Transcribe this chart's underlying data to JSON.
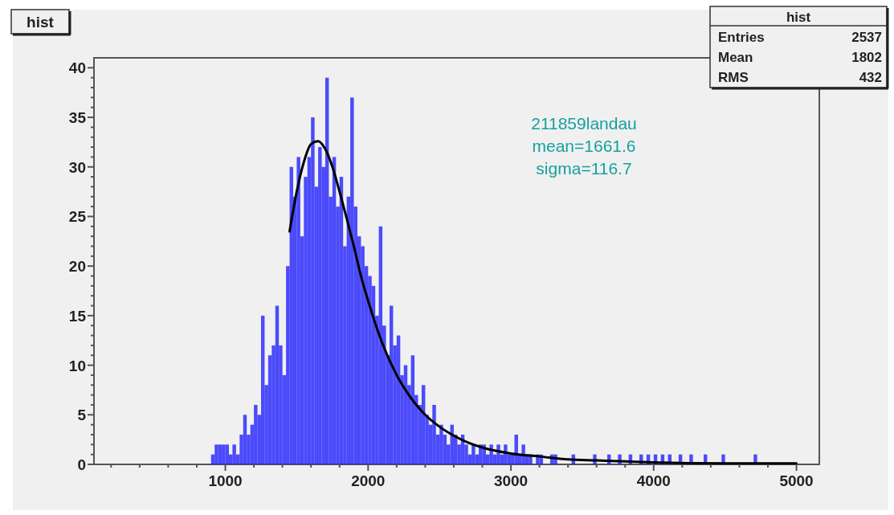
{
  "chart_data": {
    "type": "histogram",
    "title": "hist",
    "annotations": [
      "211859landau",
      "mean=1661.6",
      "sigma=116.7",
      "hist",
      "Entries",
      "2537",
      "Mean",
      "1802",
      "RMS",
      "432"
    ],
    "xlim": [
      80,
      5160
    ],
    "ylim": [
      0,
      41
    ],
    "xticks": [
      {
        "value": 200,
        "label": null
      },
      {
        "value": 400,
        "label": null
      },
      {
        "value": 600,
        "label": null
      },
      {
        "value": 800,
        "label": null
      },
      1000,
      {
        "value": 1200,
        "label": null
      },
      {
        "value": 1400,
        "label": null
      },
      {
        "value": 1600,
        "label": null
      },
      {
        "value": 1800,
        "label": null
      },
      2000,
      {
        "value": 2200,
        "label": null
      },
      {
        "value": 2400,
        "label": null
      },
      {
        "value": 2600,
        "label": null
      },
      {
        "value": 2800,
        "label": null
      },
      3000,
      {
        "value": 3200,
        "label": null
      },
      {
        "value": 3400,
        "label": null
      },
      {
        "value": 3600,
        "label": null
      },
      {
        "value": 3800,
        "label": null
      },
      4000,
      {
        "value": 4200,
        "label": null
      },
      {
        "value": 4400,
        "label": null
      },
      {
        "value": 4600,
        "label": null
      },
      {
        "value": 4800,
        "label": null
      },
      5000
    ],
    "yticks": [
      0,
      {
        "value": 1,
        "label": null
      },
      {
        "value": 2,
        "label": null
      },
      {
        "value": 3,
        "label": null
      },
      {
        "value": 4,
        "label": null
      },
      5,
      {
        "value": 6,
        "label": null
      },
      {
        "value": 7,
        "label": null
      },
      {
        "value": 8,
        "label": null
      },
      {
        "value": 9,
        "label": null
      },
      10,
      {
        "value": 11,
        "label": null
      },
      {
        "value": 12,
        "label": null
      },
      {
        "value": 13,
        "label": null
      },
      {
        "value": 14,
        "label": null
      },
      15,
      {
        "value": 16,
        "label": null
      },
      {
        "value": 17,
        "label": null
      },
      {
        "value": 18,
        "label": null
      },
      {
        "value": 19,
        "label": null
      },
      20,
      {
        "value": 21,
        "label": null
      },
      {
        "value": 22,
        "label": null
      },
      {
        "value": 23,
        "label": null
      },
      {
        "value": 24,
        "label": null
      },
      25,
      {
        "value": 26,
        "label": null
      },
      {
        "value": 27,
        "label": null
      },
      {
        "value": 28,
        "label": null
      },
      {
        "value": 29,
        "label": null
      },
      30,
      {
        "value": 31,
        "label": null
      },
      {
        "value": 32,
        "label": null
      },
      {
        "value": 33,
        "label": null
      },
      {
        "value": 34,
        "label": null
      },
      35,
      {
        "value": 36,
        "label": null
      },
      {
        "value": 37,
        "label": null
      },
      {
        "value": 38,
        "label": null
      },
      {
        "value": 39,
        "label": null
      },
      40
    ],
    "series": [
      {
        "color": "#1414ff",
        "bins": [
          900,
          925,
          950,
          975,
          1000,
          1025,
          1050,
          1075,
          1100,
          1125,
          1150,
          1175,
          1200,
          1225,
          1250,
          1275,
          1300,
          1325,
          1350,
          1375,
          1400,
          1425,
          1450,
          1475,
          1500,
          1525,
          1550,
          1575,
          1600,
          1625,
          1650,
          1675,
          1700,
          1725,
          1750,
          1775,
          1800,
          1825,
          1850,
          1875,
          1900,
          1925,
          1950,
          1975,
          2000,
          2025,
          2050,
          2075,
          2100,
          2125,
          2150,
          2175,
          2200,
          2225,
          2250,
          2275,
          2300,
          2325,
          2350,
          2375,
          2400,
          2425,
          2450,
          2475,
          2500,
          2525,
          2550,
          2575,
          2600,
          2625,
          2650,
          2675,
          2700,
          2725,
          2750,
          2775,
          2800,
          2825,
          2850,
          2875,
          2900,
          2925,
          2950,
          2975,
          3000,
          3025,
          3050,
          3075,
          3100,
          3125,
          3150,
          3175,
          3200,
          3225,
          3250,
          3275,
          3300,
          3325,
          3350,
          3375,
          3400,
          3425,
          3450,
          3475,
          3500,
          3525,
          3550,
          3575,
          3600,
          3625,
          3650,
          3675,
          3700,
          3725,
          3750,
          3775,
          3800,
          3825,
          3850,
          3875,
          3900,
          3925,
          3950,
          3975,
          4000,
          4025,
          4050,
          4075,
          4100,
          4125,
          4150,
          4175,
          4200,
          4225,
          4250,
          4275,
          4300,
          4325,
          4350,
          4375,
          4400,
          4425,
          4450,
          4475,
          4500,
          4525,
          4550,
          4575,
          4600,
          4625,
          4650,
          4675,
          4700,
          4725,
          4750
        ],
        "values": [
          1,
          2,
          2,
          2,
          2,
          1,
          2,
          1,
          3,
          5,
          3,
          4,
          6,
          5,
          15,
          8,
          11,
          12,
          16,
          12,
          9,
          20,
          30,
          27,
          31,
          23,
          29,
          31,
          35,
          28,
          32,
          30,
          39,
          27,
          31,
          26,
          29,
          22,
          27,
          37,
          26,
          23,
          22,
          20,
          19,
          18,
          15,
          24,
          14,
          11,
          16,
          12,
          13,
          9,
          10,
          8,
          11,
          7,
          6,
          8,
          5,
          4,
          6,
          3,
          4,
          3,
          2,
          4,
          3,
          2,
          3,
          2,
          1,
          2,
          1,
          2,
          2,
          1,
          2,
          1,
          2,
          1,
          2,
          1,
          1,
          3,
          1,
          2,
          1,
          1,
          0,
          1,
          1,
          0,
          0,
          1,
          1,
          0,
          0,
          0,
          0,
          1,
          0,
          0,
          0,
          0,
          0,
          1,
          0,
          0,
          0,
          1,
          0,
          0,
          1,
          0,
          0,
          1,
          0,
          0,
          1,
          0,
          1,
          0,
          1,
          0,
          1,
          0,
          1,
          0,
          0,
          1,
          0,
          0,
          1,
          0,
          0,
          0,
          1,
          0,
          0,
          0,
          0,
          1,
          0,
          0,
          0,
          0,
          0,
          0,
          0,
          0,
          1,
          0
        ]
      },
      {
        "type": "line",
        "color": "#000000",
        "x": [
          1450,
          1500,
          1550,
          1600,
          1650,
          1700,
          1750,
          1800,
          1850,
          1900,
          1950,
          2000,
          2100,
          2200,
          2300,
          2400,
          2500,
          2600,
          2700,
          2800,
          3000,
          3200,
          3400,
          3600,
          3800,
          4000,
          4500,
          5000
        ],
        "values": [
          23.5,
          27.5,
          30.5,
          32.3,
          32.6,
          31.8,
          30,
          27.5,
          24.8,
          22,
          19,
          16.5,
          12.2,
          9,
          6.7,
          5,
          3.8,
          2.9,
          2.2,
          1.7,
          1.1,
          0.8,
          0.5,
          0.4,
          0.3,
          0.2,
          0.1,
          0.1
        ]
      }
    ]
  }
}
